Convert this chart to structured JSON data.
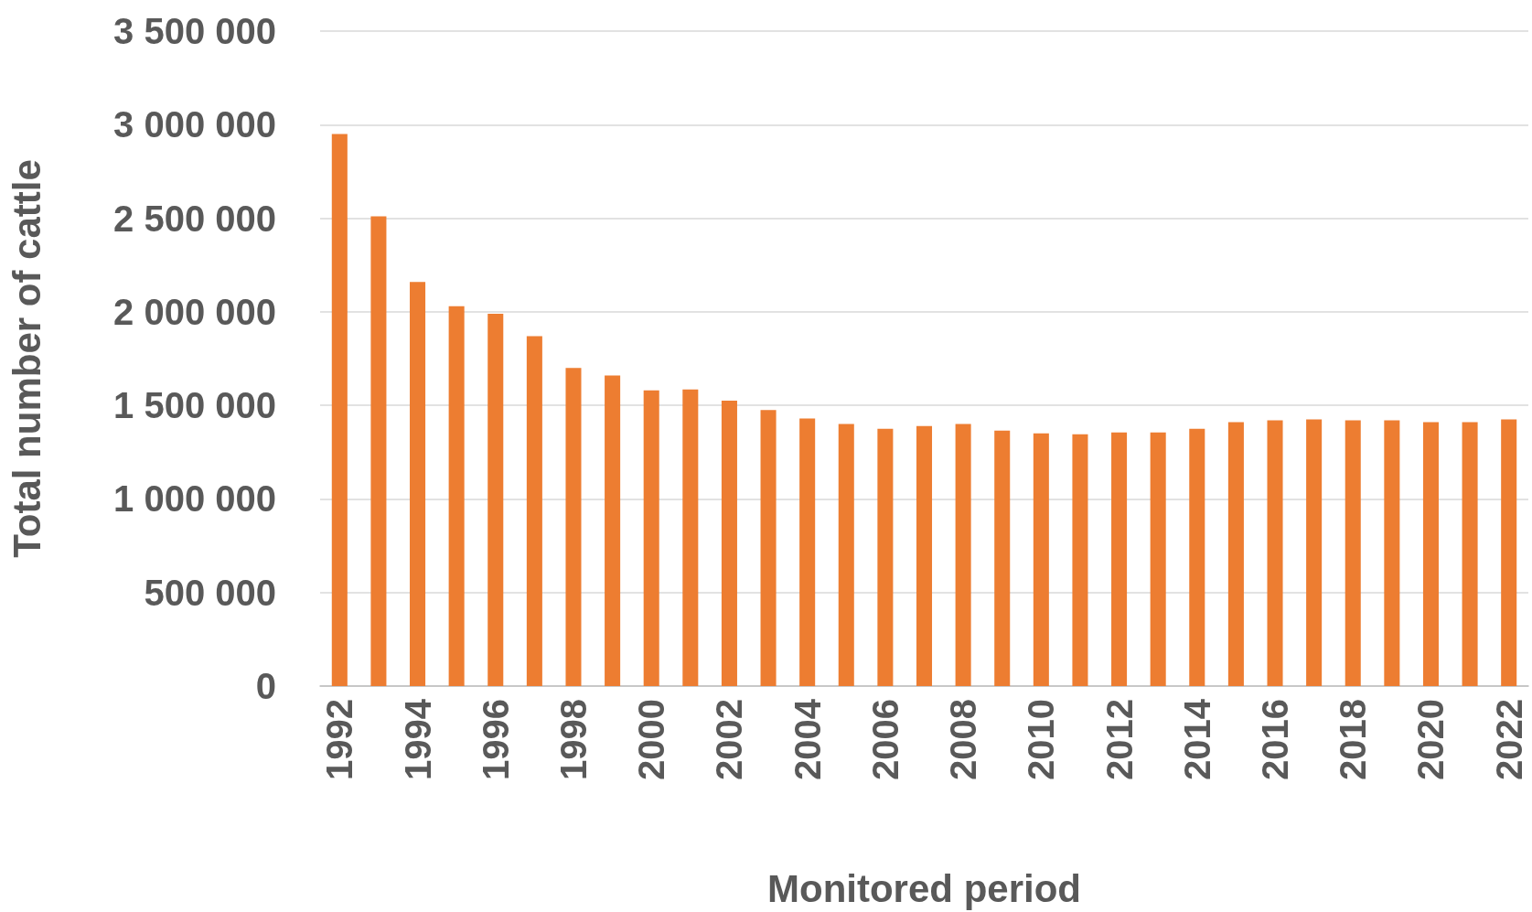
{
  "chart_data": {
    "type": "bar",
    "xlabel": "Monitored period",
    "ylabel": "Total number of cattle",
    "categories": [
      "1992",
      null,
      "1994",
      null,
      "1996",
      null,
      "1998",
      null,
      "2000",
      null,
      "2002",
      null,
      "2004",
      null,
      "2006",
      null,
      "2008",
      null,
      "2010",
      null,
      "2012",
      null,
      "2014",
      null,
      "2016",
      null,
      "2018",
      null,
      "2020",
      null,
      "2022"
    ],
    "values": [
      2950000,
      2510000,
      2160000,
      2030000,
      1990000,
      1870000,
      1700000,
      1660000,
      1580000,
      1585000,
      1525000,
      1475000,
      1430000,
      1400000,
      1375000,
      1390000,
      1400000,
      1365000,
      1350000,
      1345000,
      1355000,
      1355000,
      1375000,
      1410000,
      1420000,
      1425000,
      1420000,
      1420000,
      1410000,
      1410000,
      1425000
    ],
    "color": "#ed7d31",
    "ylim": [
      0,
      3500000
    ],
    "yticks": [
      {
        "value": 0,
        "label": "0"
      },
      {
        "value": 500000,
        "label": "500 000"
      },
      {
        "value": 1000000,
        "label": "1 000 000"
      },
      {
        "value": 1500000,
        "label": "1 500 000"
      },
      {
        "value": 2000000,
        "label": "2 000 000"
      },
      {
        "value": 2500000,
        "label": "2 500 000"
      },
      {
        "value": 3000000,
        "label": "3 000 000"
      },
      {
        "value": 3500000,
        "label": "3 500 000"
      }
    ],
    "grid": "y"
  }
}
